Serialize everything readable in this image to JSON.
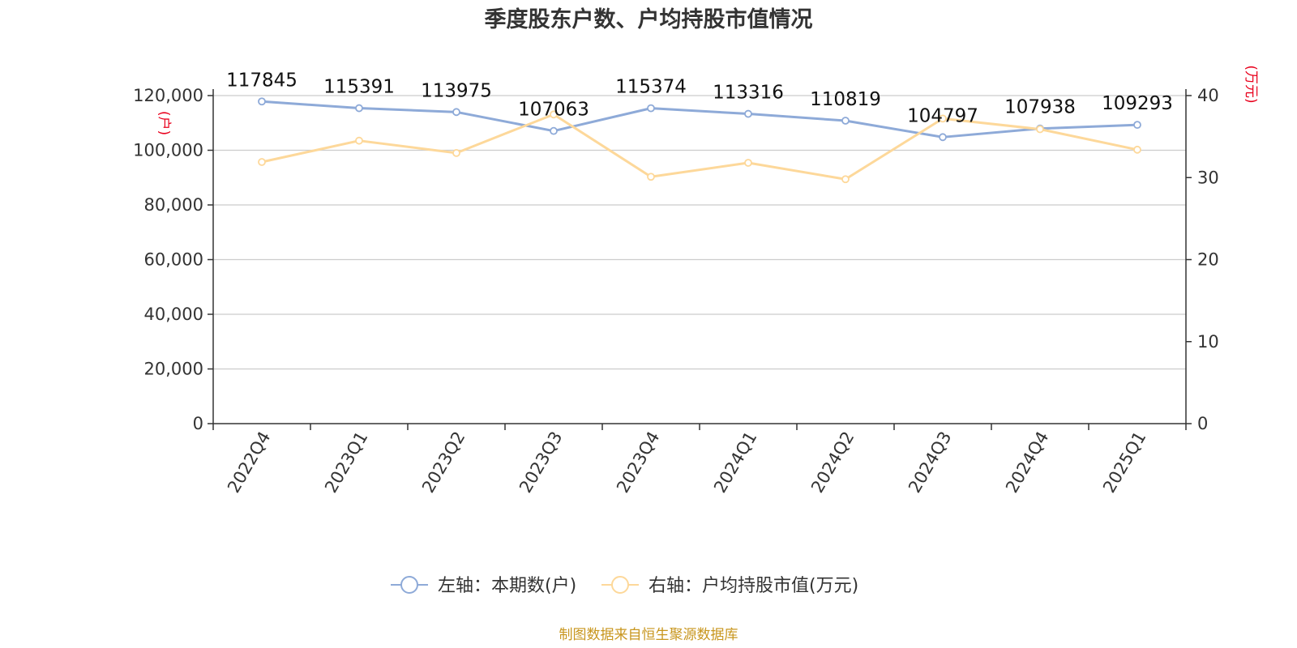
{
  "chart_data": {
    "type": "line",
    "title": "季度股东户数、户均持股市值情况",
    "categories": [
      "2022Q4",
      "2023Q1",
      "2023Q2",
      "2023Q3",
      "2023Q4",
      "2024Q1",
      "2024Q2",
      "2024Q3",
      "2024Q4",
      "2025Q1"
    ],
    "y_left": {
      "unit": "(户)",
      "ylim": [
        0,
        120000
      ],
      "ticks": [
        "0",
        "20,000",
        "40,000",
        "60,000",
        "80,000",
        "100,000",
        "120,000"
      ],
      "tick_values": [
        0,
        20000,
        40000,
        60000,
        80000,
        100000,
        120000
      ]
    },
    "y_right": {
      "unit": "(万元)",
      "ylim": [
        0,
        40
      ],
      "ticks": [
        "0",
        "10",
        "20",
        "30",
        "40"
      ],
      "tick_values": [
        0,
        10,
        20,
        30,
        40
      ]
    },
    "series": [
      {
        "name": "左轴：本期数(户)",
        "axis": "left",
        "color": "#8eaad8",
        "values": [
          117845,
          115391,
          113975,
          107063,
          115374,
          113316,
          110819,
          104797,
          107938,
          109293
        ],
        "labels": [
          "117845",
          "115391",
          "113975",
          "107063",
          "115374",
          "113316",
          "110819",
          "104797",
          "107938",
          "109293"
        ]
      },
      {
        "name": "右轴：户均持股市值(万元)",
        "axis": "right",
        "color": "#fdd89a",
        "values": [
          31.9,
          34.5,
          33.0,
          37.7,
          30.1,
          31.8,
          29.8,
          37.2,
          35.9,
          33.4
        ]
      }
    ],
    "grid": true,
    "legend_position": "bottom-center",
    "source": "制图数据来自恒生聚源数据库"
  }
}
